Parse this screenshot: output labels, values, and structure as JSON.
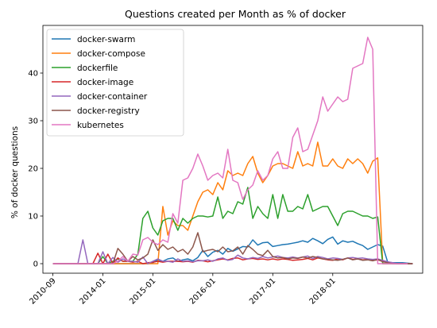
{
  "chart_data": {
    "type": "line",
    "title": "Questions created per Month as % of docker",
    "xlabel": "",
    "ylabel": "% of docker questions",
    "ylim": [
      -2,
      50
    ],
    "yticks": [
      0,
      10,
      20,
      30,
      40
    ],
    "xticks": [
      {
        "x": 0,
        "label": "2010-09"
      },
      {
        "x": 10,
        "label": "2014-01"
      },
      {
        "x": 20,
        "label": "2015-01"
      },
      {
        "x": 32,
        "label": "2016-01"
      },
      {
        "x": 44,
        "label": "2017-01"
      },
      {
        "x": 56,
        "label": "2018-01"
      }
    ],
    "x_points": [
      0,
      1,
      2,
      3,
      4,
      5,
      6,
      7,
      8,
      9,
      10,
      11,
      12,
      13,
      14,
      15,
      16,
      17,
      18,
      19,
      20,
      21,
      22,
      23,
      24,
      25,
      26,
      27,
      28,
      29,
      30,
      31,
      32,
      33,
      34,
      35,
      36,
      37,
      38,
      39,
      40,
      41,
      42,
      43,
      44,
      45,
      46,
      47,
      48,
      49,
      50,
      51,
      52,
      53,
      54,
      55,
      56,
      57,
      58,
      59,
      60,
      61,
      62,
      63,
      64,
      65,
      66,
      67,
      68,
      69,
      70,
      71,
      72
    ],
    "legend_position": "upper-left",
    "series": [
      {
        "name": "docker-swarm",
        "color": "#1f77b4",
        "values": [
          0,
          0,
          0,
          0,
          0,
          0,
          0,
          0,
          0,
          0,
          0,
          0,
          0,
          0,
          0,
          0,
          0,
          0,
          0,
          0,
          0.2,
          0.8,
          0.5,
          1,
          1.2,
          0.5,
          0.8,
          1,
          0.6,
          1.3,
          2.8,
          1.5,
          2.4,
          2.8,
          2,
          3.2,
          2.6,
          3.1,
          3.6,
          3.5,
          5,
          3.9,
          4.4,
          4.5,
          3.6,
          3.8,
          4,
          4.1,
          4.3,
          4.5,
          4.8,
          4.5,
          5.3,
          4.8,
          4.2,
          5.1,
          5.6,
          4.1,
          4.8,
          4.5,
          4.7,
          4.2,
          3.8,
          3,
          3.5,
          4,
          3.7,
          0.3,
          0.2,
          0.2,
          0.2,
          0.1,
          0
        ]
      },
      {
        "name": "docker-compose",
        "color": "#ff7f0e",
        "values": [
          0,
          0,
          0,
          0,
          0,
          0,
          0,
          0,
          0,
          0,
          0,
          0,
          0,
          0,
          0,
          0,
          0,
          0,
          0,
          0,
          0,
          0,
          12,
          6,
          9,
          8,
          8,
          7,
          10,
          13,
          15,
          15.5,
          14.5,
          17,
          15.5,
          19.5,
          18.5,
          19,
          18.5,
          21,
          22.5,
          19,
          17,
          18.5,
          20.5,
          21,
          21,
          20.5,
          20,
          23.5,
          20.5,
          21,
          20.5,
          25.5,
          20.5,
          20.5,
          22,
          20.5,
          20,
          22,
          21,
          22,
          21,
          19,
          21.5,
          22.2,
          0,
          0,
          0,
          0,
          0,
          0,
          0
        ]
      },
      {
        "name": "dockerfile",
        "color": "#2ca02c",
        "values": [
          0,
          0,
          0,
          0,
          0,
          0,
          0,
          0,
          0,
          0,
          1.5,
          0,
          0.5,
          1,
          0.5,
          0.5,
          0.5,
          2,
          9.5,
          11,
          7.5,
          6,
          9,
          9.5,
          9.5,
          7,
          9.5,
          8.5,
          9.5,
          10,
          10,
          9.8,
          10,
          14,
          9.5,
          11,
          10.5,
          13,
          12.5,
          16,
          9.5,
          12,
          10.5,
          9.5,
          14.5,
          9.5,
          14.5,
          11,
          11,
          12,
          11.5,
          14.5,
          11,
          11.5,
          12,
          12,
          10,
          8,
          10.5,
          11,
          11,
          10.5,
          10,
          10,
          9.5,
          9.8,
          0,
          0,
          0,
          0,
          0,
          0,
          0
        ]
      },
      {
        "name": "docker-image",
        "color": "#d62728",
        "values": [
          0,
          0,
          0,
          0,
          0,
          0,
          0,
          0,
          0,
          2.2,
          0,
          2,
          0,
          1.2,
          0.5,
          0.5,
          0.3,
          0.5,
          0,
          0.2,
          0.3,
          0.5,
          0.3,
          0.5,
          0.5,
          0.5,
          0.4,
          0.5,
          0.3,
          0.7,
          0.6,
          0.4,
          0.6,
          0.8,
          1.0,
          0.8,
          1.1,
          1.2,
          0.8,
          1.0,
          1.1,
          0.9,
          1.0,
          0.8,
          1.0,
          0.8,
          1.0,
          0.9,
          0.7,
          0.8,
          0.9,
          1.1,
          0.8,
          1.2,
          1.0,
          0.8,
          0.7,
          1.0,
          0.8,
          1.2,
          0.9,
          1.0,
          0.8,
          0.9,
          0.7,
          0.8,
          0.5,
          0.3,
          0.1,
          0,
          0,
          0,
          0
        ]
      },
      {
        "name": "docker-container",
        "color": "#9467bd",
        "values": [
          0,
          0,
          0,
          0,
          0,
          0,
          5,
          0,
          0,
          0,
          2.5,
          0,
          1.3,
          0.3,
          1,
          0.5,
          0.5,
          0.3,
          1.4,
          0,
          0.5,
          1,
          0.5,
          0.5,
          0.3,
          1.0,
          0.5,
          0.6,
          0.4,
          0.6,
          0.6,
          0.8,
          0.5,
          1.0,
          1.2,
          0.7,
          0.9,
          1.8,
          1.2,
          1.0,
          1.3,
          1.1,
          1.5,
          1.2,
          1.4,
          1.6,
          1.3,
          1.2,
          1.4,
          1.2,
          1.4,
          1.6,
          1.1,
          1.5,
          1.3,
          1.0,
          1.2,
          1.1,
          0.9,
          1.2,
          1.3,
          1.1,
          1.2,
          1.0,
          0.9,
          1.0,
          0.7,
          0.4,
          0.2,
          0,
          0,
          0,
          0
        ]
      },
      {
        "name": "docker-registry",
        "color": "#8c564b",
        "values": [
          0,
          0,
          0,
          0,
          0,
          0,
          0,
          0,
          0,
          0,
          0,
          0,
          0,
          3.2,
          2,
          0.5,
          1.5,
          0.8,
          1.2,
          2,
          5,
          2.8,
          4,
          3,
          3.5,
          2.5,
          3,
          2,
          3.5,
          6.5,
          2.5,
          2.8,
          3,
          2.5,
          3.5,
          2.5,
          2.7,
          3.5,
          2,
          3.8,
          3,
          2,
          1.7,
          2.8,
          1.5,
          1.2,
          1.3,
          1.0,
          1.2,
          1.1,
          1.4,
          1.2,
          1.5,
          1.3,
          1.0,
          0.9,
          0.8,
          0.7,
          0.9,
          1.2,
          0.8,
          1.0,
          0.7,
          0.8,
          0.6,
          0.9,
          0.4,
          0.2,
          0,
          0,
          0,
          0,
          0
        ]
      },
      {
        "name": "kubernetes",
        "color": "#e377c2",
        "values": [
          0,
          0,
          0,
          0,
          0,
          0,
          0,
          0,
          0,
          0,
          0,
          0,
          0,
          0.5,
          1.5,
          0.5,
          2,
          1.8,
          5,
          5.5,
          4.5,
          4,
          5,
          4.5,
          10.5,
          8.5,
          17.5,
          18,
          20,
          23,
          20.5,
          17.5,
          18.5,
          19,
          18,
          24,
          17.5,
          17,
          13.5,
          15.5,
          16.5,
          19.5,
          17.5,
          18.5,
          22,
          23.5,
          20,
          20,
          26.5,
          28.5,
          23.5,
          24,
          27,
          30,
          35,
          32,
          33.5,
          35,
          34,
          34.5,
          41,
          41.5,
          42,
          47.5,
          45,
          0,
          0,
          0,
          0,
          0,
          0,
          0
        ]
      }
    ]
  }
}
